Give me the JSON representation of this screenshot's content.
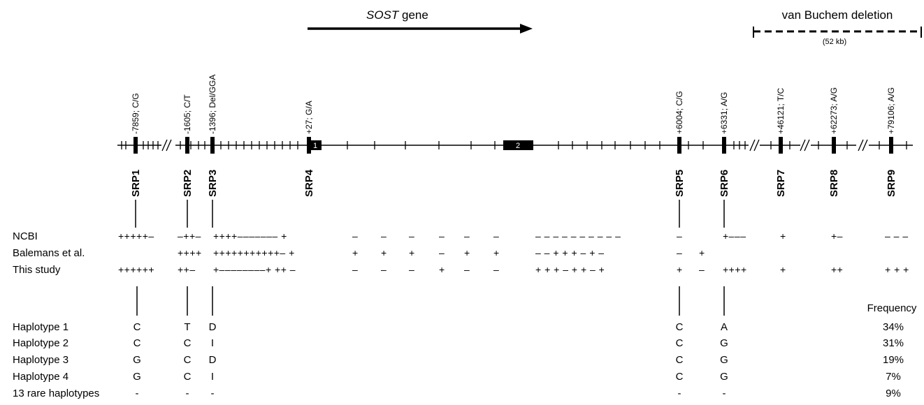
{
  "gene_label": {
    "italic": "SOST",
    "rest": " gene"
  },
  "deletion_label": "van Buchem deletion",
  "deletion_size": "(52 kb)",
  "exons": [
    "1",
    "2"
  ],
  "srps": [
    {
      "name": "SRP1",
      "snp": "-7859; C/G"
    },
    {
      "name": "SRP2",
      "snp": "-1605; C/T"
    },
    {
      "name": "SRP3",
      "snp": "-1396; Del/GGA"
    },
    {
      "name": "SRP4",
      "snp": "+27; G/A"
    },
    {
      "name": "SRP5",
      "snp": "+6004; C/G"
    },
    {
      "name": "SRP6",
      "snp": "+6331; A/G"
    },
    {
      "name": "SRP7",
      "snp": "+46121; T/C"
    },
    {
      "name": "SRP8",
      "snp": "+62273; A/G"
    },
    {
      "name": "SRP9",
      "snp": "+79106; A/G"
    }
  ],
  "studies": [
    {
      "name": "NCBI",
      "groups": [
        "+++++–",
        "–++–",
        "++++––––––– +",
        "–",
        "–",
        "–",
        "–",
        "–",
        "–",
        "– – – – – – – – – –",
        "–",
        "+–––",
        "+",
        "+–",
        "– – –"
      ]
    },
    {
      "name": "Balemans et al.",
      "groups": [
        "",
        "++++",
        "+++++++++++– +",
        "+",
        "+",
        "+",
        "–",
        "+",
        "+",
        "– – + + + – + –",
        "–",
        "+",
        "",
        "",
        ""
      ]
    },
    {
      "name": "This study",
      "groups": [
        "++++++",
        "++–",
        "+––––––––+ ++ –",
        "–",
        "–",
        "–",
        "+",
        "–",
        "–",
        "+ + + – + + – +",
        "+",
        "–",
        "++++",
        "+",
        "++",
        "+ + +"
      ]
    }
  ],
  "frequency_header": "Frequency",
  "haplotypes": [
    {
      "name": "Haplotype 1",
      "alleles": [
        "C",
        "T",
        "D",
        "C",
        "A"
      ],
      "frequency": "34%"
    },
    {
      "name": "Haplotype 2",
      "alleles": [
        "C",
        "C",
        "I",
        "C",
        "G"
      ],
      "frequency": "31%"
    },
    {
      "name": "Haplotype 3",
      "alleles": [
        "G",
        "C",
        "D",
        "C",
        "G"
      ],
      "frequency": "19%"
    },
    {
      "name": "Haplotype 4",
      "alleles": [
        "G",
        "C",
        "I",
        "C",
        "G"
      ],
      "frequency": "7%"
    },
    {
      "name": "13 rare haplotypes",
      "alleles": [
        "-",
        "-",
        "-",
        "-",
        "-"
      ],
      "frequency": "9%"
    }
  ]
}
